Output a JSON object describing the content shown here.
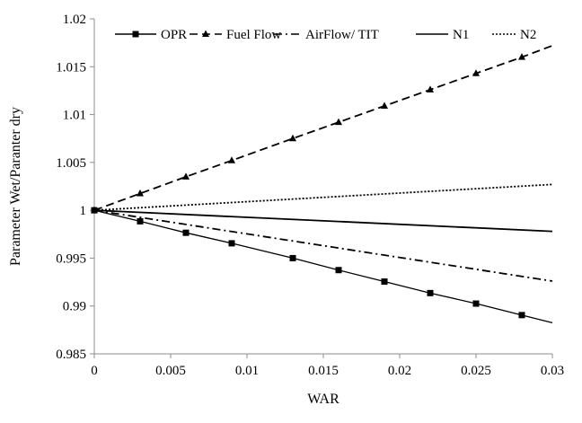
{
  "chart_data": {
    "type": "line",
    "title": "",
    "xlabel": "WAR",
    "ylabel": "Parameter  Wet/Paranter  dry",
    "xlim": [
      0,
      0.03
    ],
    "ylim": [
      0.985,
      1.02
    ],
    "x_ticks": [
      0,
      0.005,
      0.01,
      0.015,
      0.02,
      0.025,
      0.03
    ],
    "x_tick_labels": [
      "0",
      "0.005",
      "0.01",
      "0.015",
      "0.02",
      "0.025",
      "0.03"
    ],
    "y_ticks": [
      0.985,
      0.99,
      0.995,
      1,
      1.005,
      1.01,
      1.015,
      1.02
    ],
    "y_tick_labels": [
      "0.985",
      "0.99",
      "0.995",
      "1",
      "1.005",
      "1.01",
      "1.015",
      "1.02"
    ],
    "grid": false,
    "legend_position": "top",
    "series": [
      {
        "name": "OPR",
        "style": "solid",
        "marker": "square",
        "color": "#000000",
        "x": [
          0,
          0.003,
          0.006,
          0.009,
          0.013,
          0.016,
          0.019,
          0.022,
          0.025,
          0.028,
          0.03
        ],
        "y": [
          1.0,
          0.99885,
          0.99765,
          0.99655,
          0.995,
          0.99375,
          0.99255,
          0.99135,
          0.99025,
          0.98905,
          0.98825
        ],
        "marker_x": [
          0,
          0.003,
          0.006,
          0.009,
          0.013,
          0.016,
          0.019,
          0.022,
          0.025,
          0.028
        ]
      },
      {
        "name": "Fuel Flow",
        "style": "dashed",
        "marker": "triangle",
        "color": "#000000",
        "x": [
          0,
          0.003,
          0.006,
          0.009,
          0.013,
          0.016,
          0.019,
          0.022,
          0.025,
          0.028,
          0.03
        ],
        "y": [
          1.0,
          1.00175,
          1.0035,
          1.0052,
          1.0075,
          1.0092,
          1.0109,
          1.0126,
          1.0143,
          1.016,
          1.0172
        ],
        "marker_x": [
          0,
          0.003,
          0.006,
          0.009,
          0.013,
          0.016,
          0.019,
          0.022,
          0.025,
          0.028
        ]
      },
      {
        "name": "AirFlow/ TIT",
        "style": "dash-dot",
        "marker": "none",
        "color": "#000000",
        "x": [
          0,
          0.03
        ],
        "y": [
          1.0,
          0.9926
        ]
      },
      {
        "name": "N1",
        "style": "solid",
        "marker": "none",
        "color": "#000000",
        "x": [
          0,
          0.03
        ],
        "y": [
          1.0,
          0.9978
        ]
      },
      {
        "name": "N2",
        "style": "dotted",
        "marker": "none",
        "color": "#000000",
        "x": [
          0,
          0.03
        ],
        "y": [
          1.0,
          1.0027
        ]
      }
    ]
  }
}
